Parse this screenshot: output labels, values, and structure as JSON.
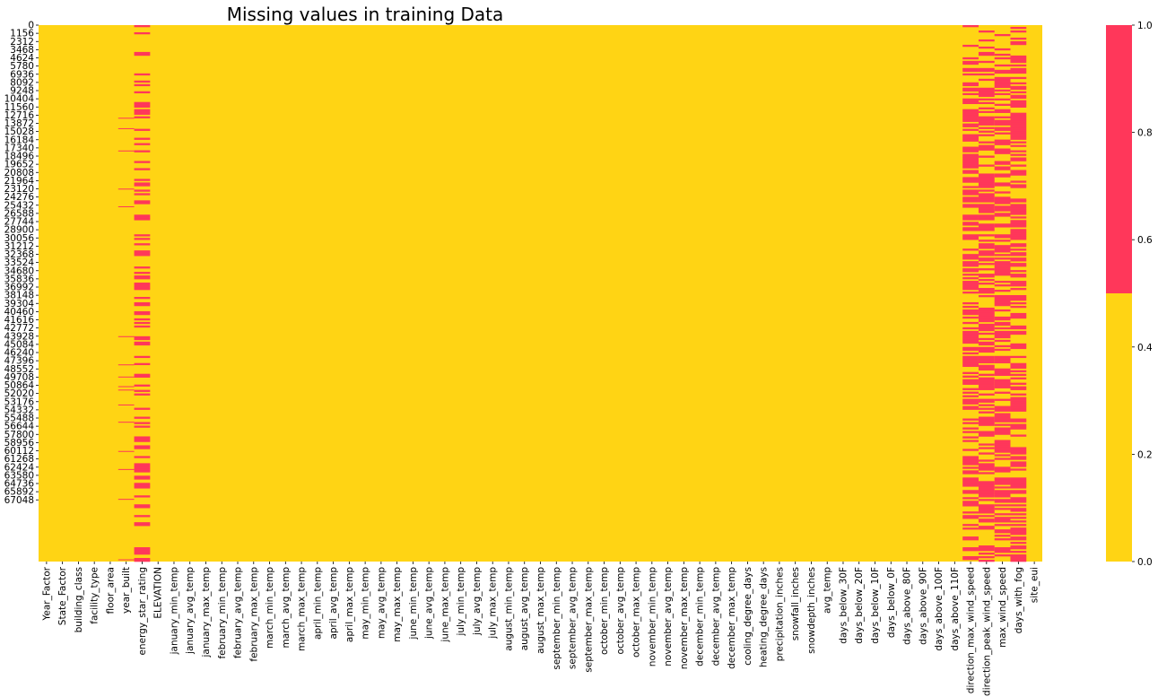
{
  "chart_data": {
    "type": "heatmap",
    "title": "Missing values in training Data",
    "xlabel": "",
    "ylabel": "",
    "colors": {
      "present": "#FFD414",
      "missing": "#FF375A"
    },
    "colorbar": {
      "range": [
        0.0,
        1.0
      ],
      "ticks": [
        "0.0",
        "0.2",
        "0.4",
        "0.6",
        "0.8",
        "1.0"
      ]
    },
    "row_count": 75757,
    "row_tick_labels": [
      "0",
      "1156",
      "2312",
      "3468",
      "4624",
      "5780",
      "6936",
      "8092",
      "9248",
      "10404",
      "11560",
      "12716",
      "13872",
      "15028",
      "16184",
      "17340",
      "18496",
      "19652",
      "20808",
      "21964",
      "23120",
      "24276",
      "25432",
      "26588",
      "27744",
      "28900",
      "30056",
      "31212",
      "32368",
      "33524",
      "34680",
      "35836",
      "36992",
      "38148",
      "39304",
      "40460",
      "41616",
      "42772",
      "43928",
      "45084",
      "46240",
      "47396",
      "48552",
      "49708",
      "50864",
      "52020",
      "53176",
      "54332",
      "55488",
      "56644",
      "57800",
      "58956",
      "60112",
      "61268",
      "62424",
      "63580",
      "64736",
      "65892",
      "67048"
    ],
    "columns": [
      "Year_Factor",
      "State_Factor",
      "building_class",
      "facility_type",
      "floor_area",
      "year_built",
      "energy_star_rating",
      "ELEVATION",
      "january_min_temp",
      "january_avg_temp",
      "january_max_temp",
      "february_min_temp",
      "february_avg_temp",
      "february_max_temp",
      "march_min_temp",
      "march_avg_temp",
      "march_max_temp",
      "april_min_temp",
      "april_avg_temp",
      "april_max_temp",
      "may_min_temp",
      "may_avg_temp",
      "may_max_temp",
      "june_min_temp",
      "june_avg_temp",
      "june_max_temp",
      "july_min_temp",
      "july_avg_temp",
      "july_max_temp",
      "august_min_temp",
      "august_avg_temp",
      "august_max_temp",
      "september_min_temp",
      "september_avg_temp",
      "september_max_temp",
      "october_min_temp",
      "october_avg_temp",
      "october_max_temp",
      "november_min_temp",
      "november_avg_temp",
      "november_max_temp",
      "december_min_temp",
      "december_avg_temp",
      "december_max_temp",
      "cooling_degree_days",
      "heating_degree_days",
      "precipitation_inches",
      "snowfall_inches",
      "snowdepth_inches",
      "avg_temp",
      "days_below_30F",
      "days_below_20F",
      "days_below_10F",
      "days_below_0F",
      "days_above_80F",
      "days_above_90F",
      "days_above_100F",
      "days_above_110F",
      "direction_max_wind_speed",
      "direction_peak_wind_speed",
      "max_wind_speed",
      "days_with_fog",
      "site_eui"
    ],
    "missing_fraction": {
      "year_built": 0.02,
      "energy_star_rating": 0.35,
      "direction_max_wind_speed": 0.54,
      "direction_peak_wind_speed": 0.55,
      "max_wind_speed": 0.54,
      "days_with_fog": 0.6
    }
  }
}
